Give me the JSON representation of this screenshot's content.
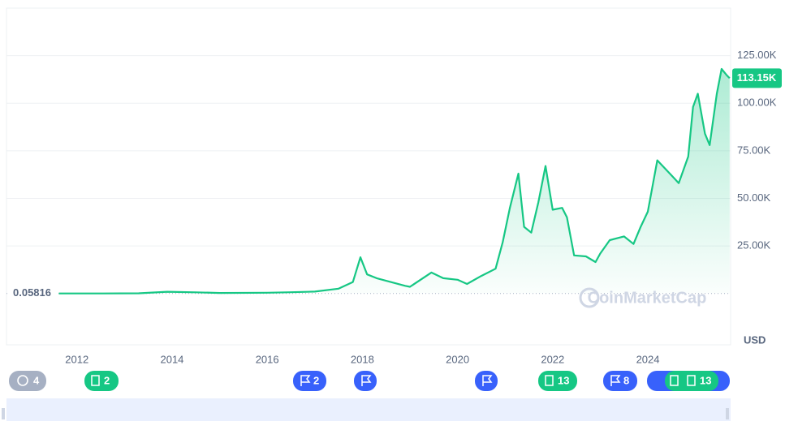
{
  "chart_data": {
    "type": "line",
    "x": [
      2011.62,
      2012.5,
      2013.3,
      2013.9,
      2014.5,
      2015.0,
      2016.0,
      2016.5,
      2017.0,
      2017.5,
      2017.8,
      2017.96,
      2018.1,
      2018.3,
      2018.9,
      2019.0,
      2019.45,
      2019.7,
      2020.0,
      2020.2,
      2020.5,
      2020.8,
      2020.95,
      2021.1,
      2021.28,
      2021.4,
      2021.55,
      2021.7,
      2021.85,
      2022.0,
      2022.2,
      2022.3,
      2022.45,
      2022.7,
      2022.9,
      2023.0,
      2023.2,
      2023.5,
      2023.7,
      2023.85,
      2024.0,
      2024.2,
      2024.5,
      2024.65,
      2024.85,
      2024.95,
      2025.05,
      2025.2,
      2025.3,
      2025.45,
      2025.55,
      2025.65,
      2025.72
    ],
    "values": [
      0.05816,
      8,
      100,
      900,
      600,
      250,
      400,
      650,
      1000,
      2500,
      6000,
      19000,
      10000,
      8000,
      4000,
      3500,
      11000,
      8000,
      7200,
      5000,
      9200,
      13000,
      27000,
      45000,
      63000,
      35000,
      32000,
      48000,
      67000,
      44000,
      45000,
      40000,
      20000,
      19500,
      16500,
      21000,
      28000,
      30000,
      26000,
      35000,
      43000,
      70000,
      62000,
      58000,
      72000,
      98000,
      105000,
      84000,
      78000,
      105000,
      118000,
      115000,
      113150
    ],
    "color": "#16c784",
    "xlim": [
      2010.52,
      2025.74
    ],
    "xticks": [
      2012,
      2014,
      2016,
      2018,
      2020,
      2022,
      2024
    ],
    "ylim": [
      -27000,
      150000
    ],
    "yticks": [
      {
        "value": 25000,
        "label": "25.00K"
      },
      {
        "value": 50000,
        "label": "50.00K"
      },
      {
        "value": 75000,
        "label": "75.00K"
      },
      {
        "value": 100000,
        "label": "100.00K"
      },
      {
        "value": 125000,
        "label": "125.00K"
      }
    ],
    "grid": true,
    "start_price": 0.05816,
    "last_price": {
      "value": 113150,
      "label": "113.15K"
    },
    "currency": "USD",
    "watermark": "CoinMarketCap"
  },
  "events": [
    "4",
    "2",
    "2",
    "8",
    "13",
    "13"
  ]
}
